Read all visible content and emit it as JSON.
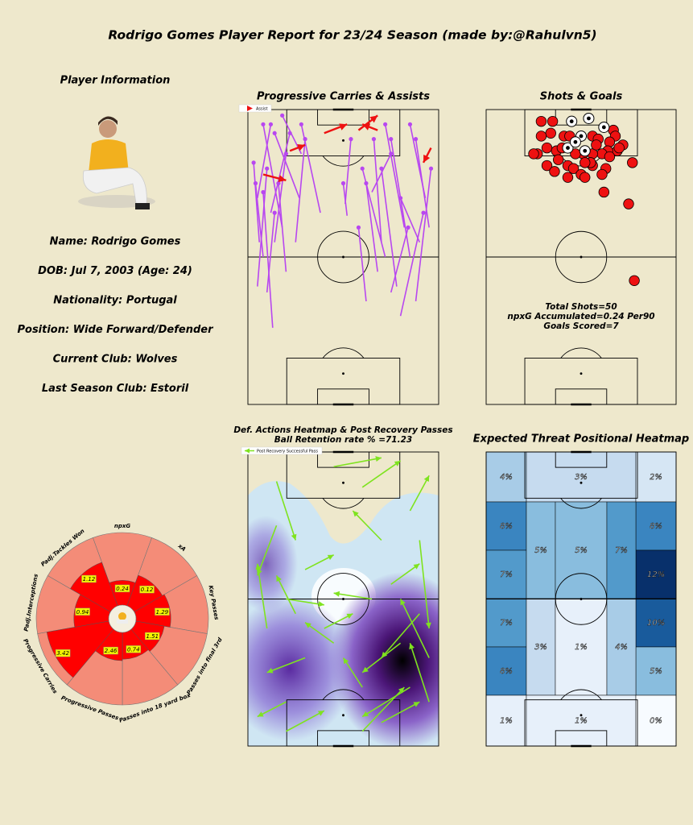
{
  "title": "Rodrigo Gomes Player Report for 23/24 Season  (made by:@Rahulvn5)",
  "player_info": {
    "heading": "Player Information",
    "lines": [
      "Name: Rodrigo Gomes",
      "DOB: Jul 7, 2003  (Age: 24)",
      "Nationality: Portugal",
      "Position: Wide Forward/Defender",
      "Current Club: Wolves",
      "Last Season Club: Estoril"
    ]
  },
  "chart_data": [
    {
      "type": "carries",
      "title": "Progressive Carries & Assists",
      "legend": "Assist",
      "carry_color": "#b847f0",
      "assist_color": "#ee1111",
      "carries": [
        [
          13,
          74,
          8,
          28
        ],
        [
          5,
          60,
          10,
          20
        ],
        [
          8,
          50,
          4,
          25
        ],
        [
          14,
          45,
          20,
          15
        ],
        [
          18,
          40,
          8,
          5
        ],
        [
          27,
          30,
          14,
          8
        ],
        [
          12,
          35,
          22,
          8
        ],
        [
          5,
          30,
          12,
          5
        ],
        [
          20,
          55,
          16,
          25
        ],
        [
          25,
          45,
          30,
          10
        ],
        [
          38,
          35,
          28,
          5
        ],
        [
          52,
          36,
          50,
          25
        ],
        [
          51,
          32,
          54,
          10
        ],
        [
          62,
          65,
          58,
          40
        ],
        [
          68,
          55,
          62,
          25
        ],
        [
          72,
          50,
          60,
          20
        ],
        [
          78,
          60,
          70,
          20
        ],
        [
          85,
          50,
          75,
          10
        ],
        [
          90,
          45,
          80,
          30
        ],
        [
          95,
          40,
          88,
          10
        ],
        [
          88,
          65,
          96,
          20
        ],
        [
          80,
          70,
          92,
          35
        ],
        [
          75,
          62,
          84,
          40
        ],
        [
          70,
          45,
          66,
          10
        ],
        [
          82,
          40,
          72,
          5
        ],
        [
          93,
          30,
          85,
          5
        ],
        [
          65,
          28,
          75,
          15
        ],
        [
          6,
          45,
          3,
          18
        ],
        [
          10,
          62,
          14,
          35
        ],
        [
          28,
          15,
          18,
          2
        ]
      ],
      "assists": [
        [
          40,
          8,
          52,
          5
        ],
        [
          58,
          7,
          68,
          2
        ],
        [
          68,
          7,
          60,
          5
        ],
        [
          22,
          14,
          30,
          12
        ],
        [
          8,
          22,
          20,
          24
        ],
        [
          96,
          13,
          92,
          18
        ]
      ]
    },
    {
      "type": "shots",
      "title": "Shots & Goals",
      "annotations": [
        "Total Shots=50",
        "npxG Accumulated=0.24 Per90",
        "Goals Scored=7"
      ],
      "color": "#ee1111",
      "x": [
        45,
        54,
        62,
        50,
        43,
        52,
        47,
        29,
        35,
        34,
        29,
        27,
        32,
        37,
        41,
        44,
        56,
        59,
        67,
        68,
        65,
        72,
        69,
        64,
        61,
        56,
        51,
        32,
        43,
        46,
        43,
        50,
        52,
        56,
        63,
        61,
        77,
        62,
        75,
        78,
        47,
        40,
        65,
        58,
        55,
        36,
        25,
        70,
        38,
        52
      ],
      "y": [
        4,
        3,
        6,
        9,
        13,
        14,
        11,
        4,
        4,
        8,
        9,
        15,
        13,
        14,
        9,
        9,
        9,
        10,
        7,
        9,
        11,
        12,
        14,
        14,
        15,
        15,
        15,
        19,
        19,
        20,
        23,
        22,
        23,
        19,
        20,
        22,
        18,
        28,
        32,
        58,
        15,
        13,
        16,
        12,
        18,
        21,
        15,
        13,
        17,
        18
      ],
      "is_goal": [
        true,
        true,
        true,
        true,
        true,
        true,
        true,
        false,
        false,
        false,
        false,
        false,
        false,
        false,
        false,
        false,
        false,
        false,
        false,
        false,
        false,
        false,
        false,
        false,
        false,
        false,
        false,
        false,
        false,
        false,
        false,
        false,
        false,
        false,
        false,
        false,
        false,
        false,
        false,
        false,
        false,
        false,
        false,
        false,
        false,
        false,
        false,
        false,
        false,
        false
      ]
    },
    {
      "type": "passes",
      "title": "Def. Actions Heatmap & Post Recovery Passes",
      "subtitle": "Ball Retention rate % =71.23",
      "legend": "Post Recovery Successful Pass",
      "color": "#7fe31f",
      "passes": [
        [
          45,
          5,
          70,
          2
        ],
        [
          60,
          12,
          80,
          3
        ],
        [
          85,
          20,
          95,
          8
        ],
        [
          70,
          30,
          55,
          20
        ],
        [
          15,
          10,
          25,
          30
        ],
        [
          15,
          25,
          5,
          42
        ],
        [
          30,
          40,
          45,
          35
        ],
        [
          10,
          60,
          5,
          38
        ],
        [
          20,
          50,
          40,
          52
        ],
        [
          25,
          55,
          15,
          42
        ],
        [
          40,
          60,
          55,
          55
        ],
        [
          75,
          45,
          90,
          38
        ],
        [
          90,
          30,
          95,
          60
        ],
        [
          80,
          65,
          60,
          75
        ],
        [
          90,
          55,
          70,
          70
        ],
        [
          95,
          70,
          80,
          50
        ],
        [
          85,
          80,
          60,
          90
        ],
        [
          70,
          92,
          90,
          85
        ],
        [
          60,
          95,
          82,
          80
        ],
        [
          20,
          85,
          5,
          90
        ],
        [
          30,
          70,
          10,
          75
        ],
        [
          45,
          65,
          30,
          58
        ],
        [
          65,
          50,
          45,
          48
        ],
        [
          95,
          85,
          85,
          65
        ],
        [
          60,
          80,
          50,
          70
        ],
        [
          20,
          95,
          40,
          88
        ]
      ]
    },
    {
      "type": "heatmap",
      "title": "Expected Threat Positional Heatmap",
      "colormap": "Blues",
      "values": [
        4,
        3,
        2,
        8,
        7,
        7,
        8,
        8,
        12,
        10,
        5,
        5,
        5,
        7,
        3,
        1,
        4,
        1,
        1,
        0
      ],
      "value_labels": [
        "4%",
        "3%",
        "2%",
        "8%",
        "7%",
        "7%",
        "8%",
        "8%",
        "12%",
        "10%",
        "5%",
        "5%",
        "5%",
        "7%",
        "3%",
        "1%",
        "4%",
        "1%",
        "1%",
        "0%"
      ]
    },
    {
      "type": "pizza",
      "categories": [
        "npxG",
        "xA",
        "Key Passes",
        "Passes into final 3rd",
        "Passes into 18 yard box",
        "Progressive Passes",
        "Progressive Carries",
        "Padj.Interceptions",
        "Padj.Tackles Won"
      ],
      "values": [
        0.24,
        0.12,
        1.29,
        1.51,
        0.74,
        2.46,
        3.42,
        0.94,
        1.12
      ],
      "percentiles": [
        34,
        45,
        48,
        40,
        37,
        39,
        87,
        48,
        64
      ],
      "rlim": [
        0,
        100
      ],
      "color": "#ff0000",
      "slice_color": "#f48c78",
      "label_box_color": "#f5f500"
    }
  ]
}
